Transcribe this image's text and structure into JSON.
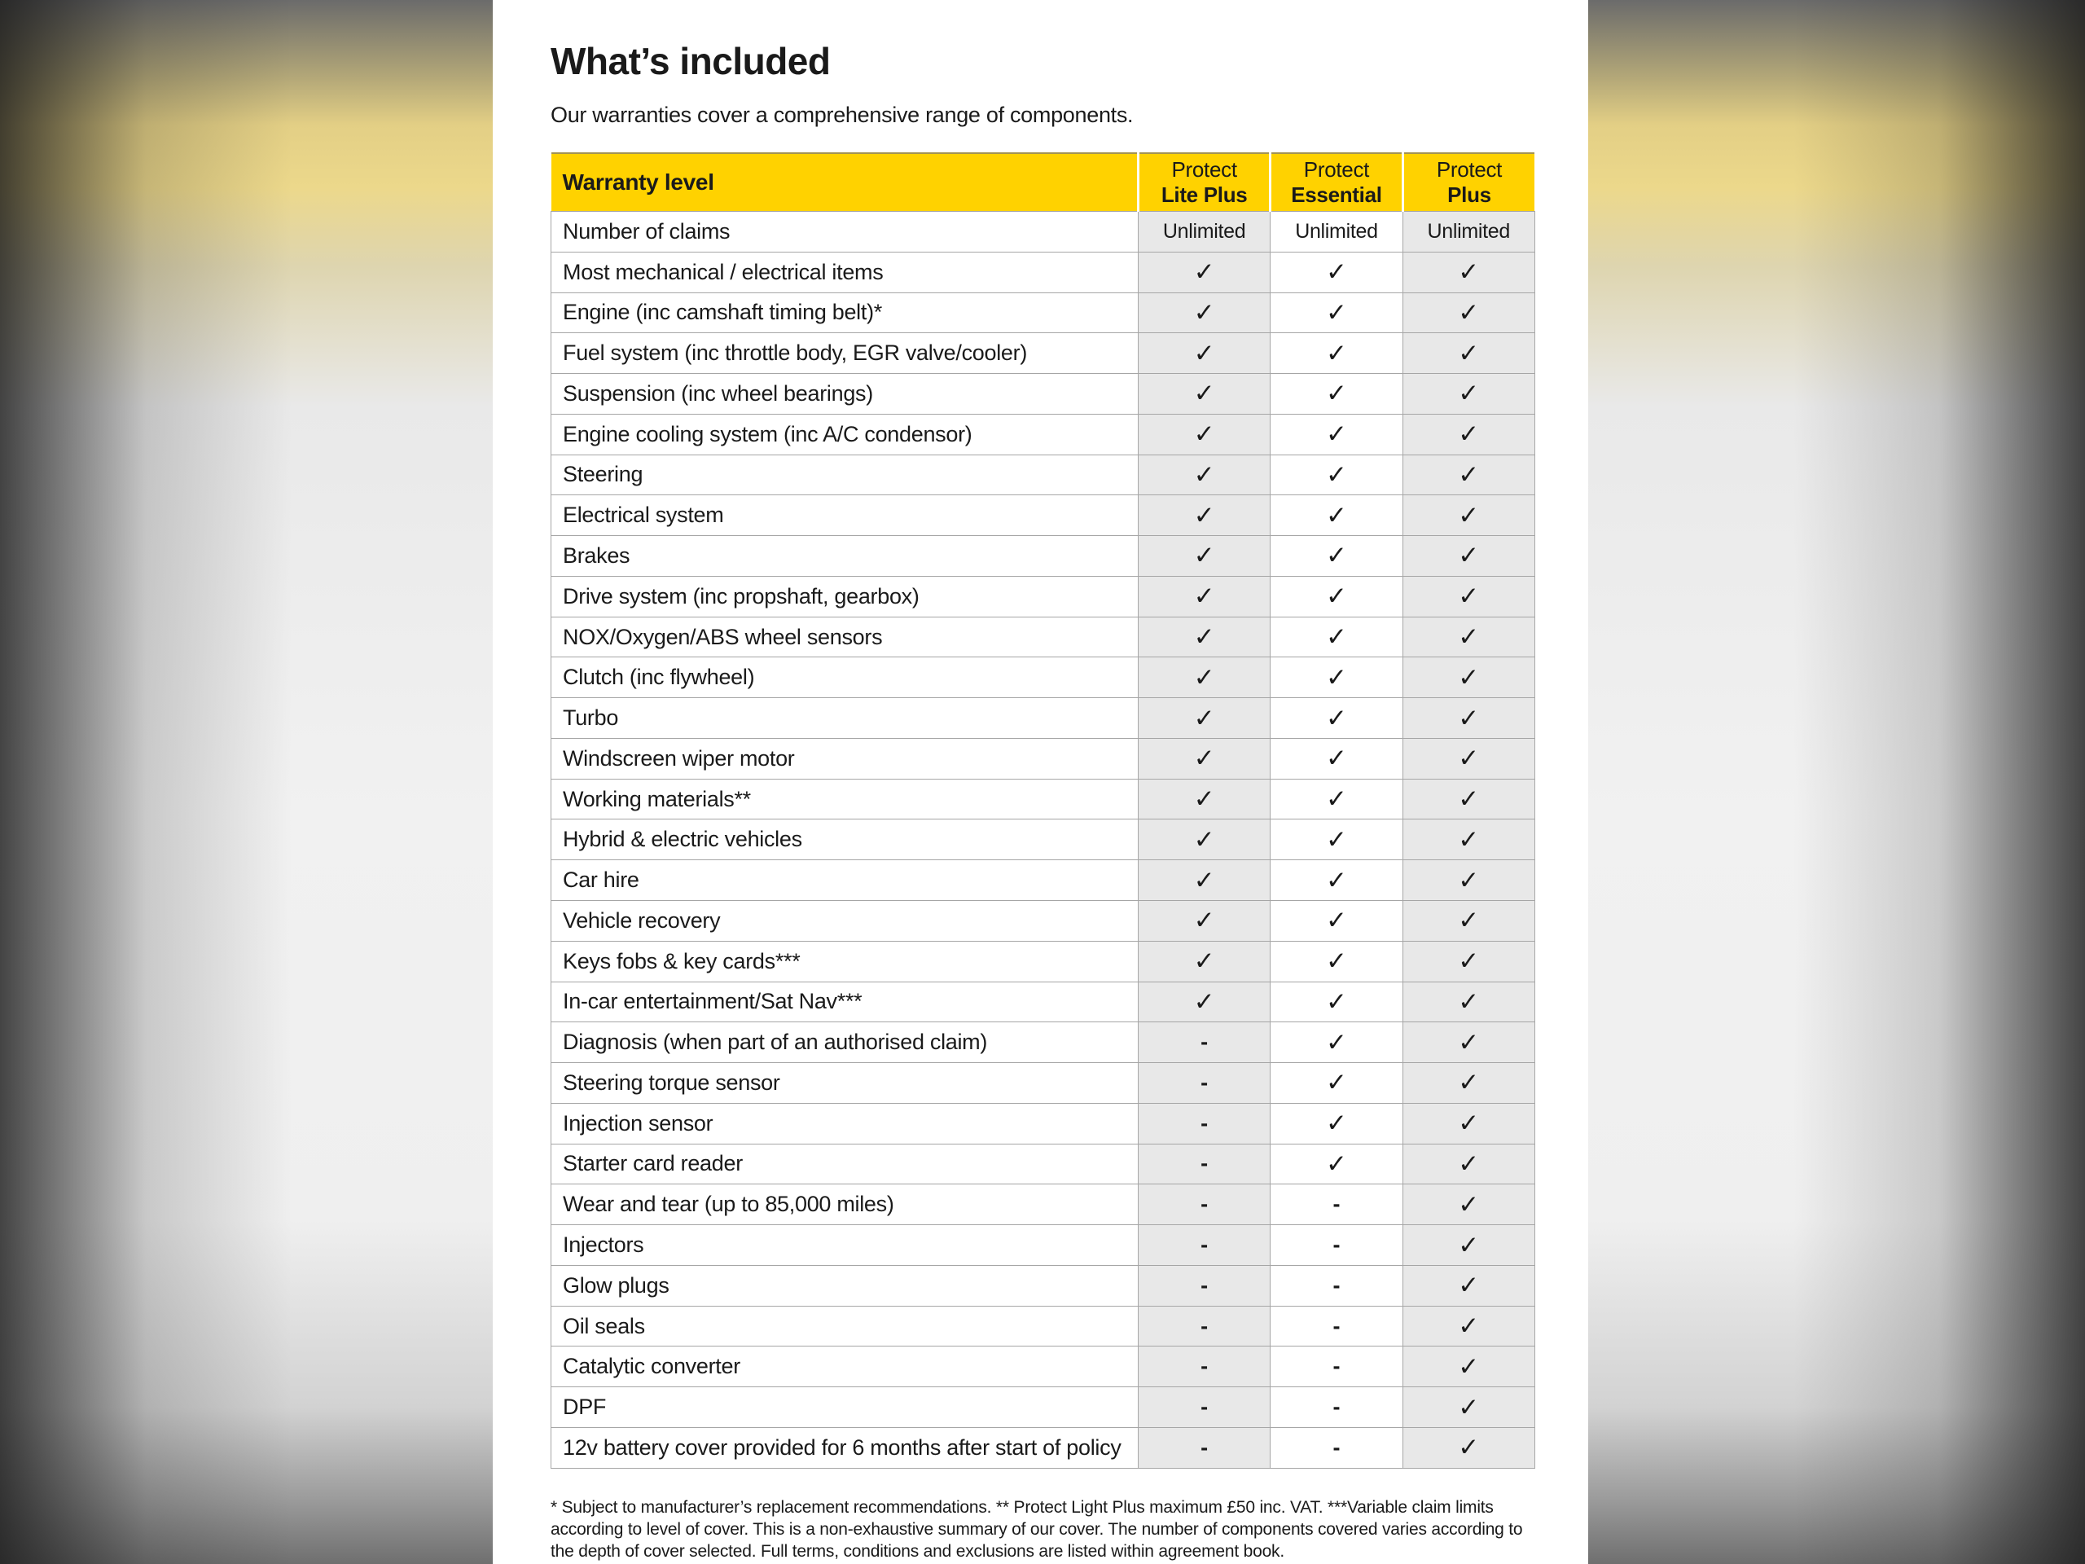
{
  "page": {
    "title": "What’s included",
    "subtitle": "Our warranties cover a comprehensive range of components."
  },
  "table": {
    "header": {
      "label": "Warranty level",
      "columns": [
        {
          "brand": "Protect",
          "tier": "Lite Plus"
        },
        {
          "brand": "Protect",
          "tier": "Essential"
        },
        {
          "brand": "Protect",
          "tier": "Plus"
        }
      ]
    },
    "symbols": {
      "included": "✓",
      "not_included": "-"
    },
    "rows": [
      {
        "label": "Number of claims",
        "values": [
          "Unlimited",
          "Unlimited",
          "Unlimited"
        ]
      },
      {
        "label": "Most mechanical / electrical items",
        "values": [
          "✓",
          "✓",
          "✓"
        ]
      },
      {
        "label": "Engine (inc camshaft timing belt)*",
        "values": [
          "✓",
          "✓",
          "✓"
        ]
      },
      {
        "label": "Fuel system (inc throttle body, EGR valve/cooler)",
        "values": [
          "✓",
          "✓",
          "✓"
        ]
      },
      {
        "label": "Suspension (inc wheel bearings)",
        "values": [
          "✓",
          "✓",
          "✓"
        ]
      },
      {
        "label": "Engine cooling system (inc A/C condensor)",
        "values": [
          "✓",
          "✓",
          "✓"
        ]
      },
      {
        "label": "Steering",
        "values": [
          "✓",
          "✓",
          "✓"
        ]
      },
      {
        "label": "Electrical system",
        "values": [
          "✓",
          "✓",
          "✓"
        ]
      },
      {
        "label": "Brakes",
        "values": [
          "✓",
          "✓",
          "✓"
        ]
      },
      {
        "label": "Drive system (inc propshaft, gearbox)",
        "values": [
          "✓",
          "✓",
          "✓"
        ]
      },
      {
        "label": "NOX/Oxygen/ABS wheel sensors",
        "values": [
          "✓",
          "✓",
          "✓"
        ]
      },
      {
        "label": "Clutch (inc flywheel)",
        "values": [
          "✓",
          "✓",
          "✓"
        ]
      },
      {
        "label": "Turbo",
        "values": [
          "✓",
          "✓",
          "✓"
        ]
      },
      {
        "label": "Windscreen wiper motor",
        "values": [
          "✓",
          "✓",
          "✓"
        ]
      },
      {
        "label": "Working materials**",
        "values": [
          "✓",
          "✓",
          "✓"
        ]
      },
      {
        "label": "Hybrid & electric vehicles",
        "values": [
          "✓",
          "✓",
          "✓"
        ]
      },
      {
        "label": "Car hire",
        "values": [
          "✓",
          "✓",
          "✓"
        ]
      },
      {
        "label": "Vehicle recovery",
        "values": [
          "✓",
          "✓",
          "✓"
        ]
      },
      {
        "label": "Keys fobs & key cards***",
        "values": [
          "✓",
          "✓",
          "✓"
        ]
      },
      {
        "label": "In-car entertainment/Sat Nav***",
        "values": [
          "✓",
          "✓",
          "✓"
        ]
      },
      {
        "label": "Diagnosis (when part of an authorised claim)",
        "values": [
          "-",
          "✓",
          "✓"
        ]
      },
      {
        "label": "Steering torque sensor",
        "values": [
          "-",
          "✓",
          "✓"
        ]
      },
      {
        "label": "Injection sensor",
        "values": [
          "-",
          "✓",
          "✓"
        ]
      },
      {
        "label": "Starter card reader",
        "values": [
          "-",
          "✓",
          "✓"
        ]
      },
      {
        "label": "Wear and tear (up to 85,000 miles)",
        "values": [
          "-",
          "-",
          "✓"
        ]
      },
      {
        "label": "Injectors",
        "values": [
          "-",
          "-",
          "✓"
        ]
      },
      {
        "label": "Glow plugs",
        "values": [
          "-",
          "-",
          "✓"
        ]
      },
      {
        "label": "Oil seals",
        "values": [
          "-",
          "-",
          "✓"
        ]
      },
      {
        "label": "Catalytic converter",
        "values": [
          "-",
          "-",
          "✓"
        ]
      },
      {
        "label": "DPF",
        "values": [
          "-",
          "-",
          "✓"
        ]
      },
      {
        "label": "12v battery cover provided for 6 months after start of policy",
        "values": [
          "-",
          "-",
          "✓"
        ]
      }
    ]
  },
  "footnote": "* Subject to manufacturer’s replacement recommendations. ** Protect Light Plus maximum £50 inc. VAT. ***Variable claim limits according to level of cover. This is a non-exhaustive summary of our cover. The number of components covered varies according to the depth of cover selected. Full terms, conditions and exclusions are listed within agreement book.",
  "colors": {
    "header_yellow": "#FFD200",
    "shaded_column": "#E8E8E8",
    "grid_line": "#A6A6A6"
  }
}
